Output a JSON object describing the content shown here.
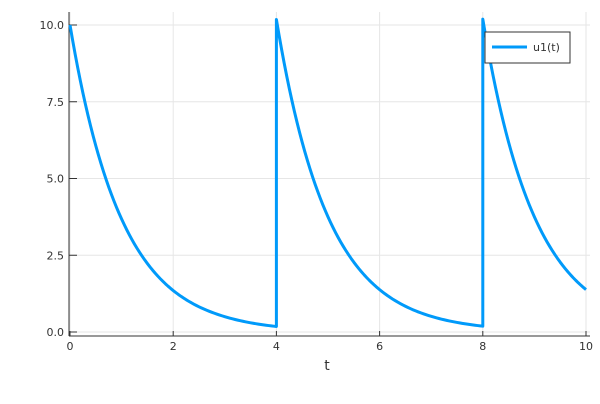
{
  "chart_data": {
    "type": "line",
    "title": "",
    "xlabel": "t",
    "ylabel": "",
    "xlim": [
      0,
      10
    ],
    "ylim": [
      -0.1,
      10.3
    ],
    "xticks": [
      "0",
      "2",
      "4",
      "6",
      "8",
      "10"
    ],
    "xtick_values": [
      0,
      2,
      4,
      6,
      8,
      10
    ],
    "yticks": [
      "0.0",
      "2.5",
      "5.0",
      "7.5",
      "10.0"
    ],
    "ytick_values": [
      0,
      2.5,
      5,
      7.5,
      10
    ],
    "grid": true,
    "legend_position": "top-right",
    "series": [
      {
        "name": "u1(t)",
        "color": "#009AFA",
        "description_points": {
          "t": [
            0,
            1,
            2,
            3,
            4,
            4,
            5,
            6,
            7,
            8,
            8,
            9,
            10
          ],
          "u": [
            10,
            3.68,
            1.35,
            0.5,
            0.18,
            10.18,
            3.75,
            1.38,
            0.51,
            0.19,
            10.19,
            3.75,
            1.38
          ]
        }
      }
    ]
  }
}
